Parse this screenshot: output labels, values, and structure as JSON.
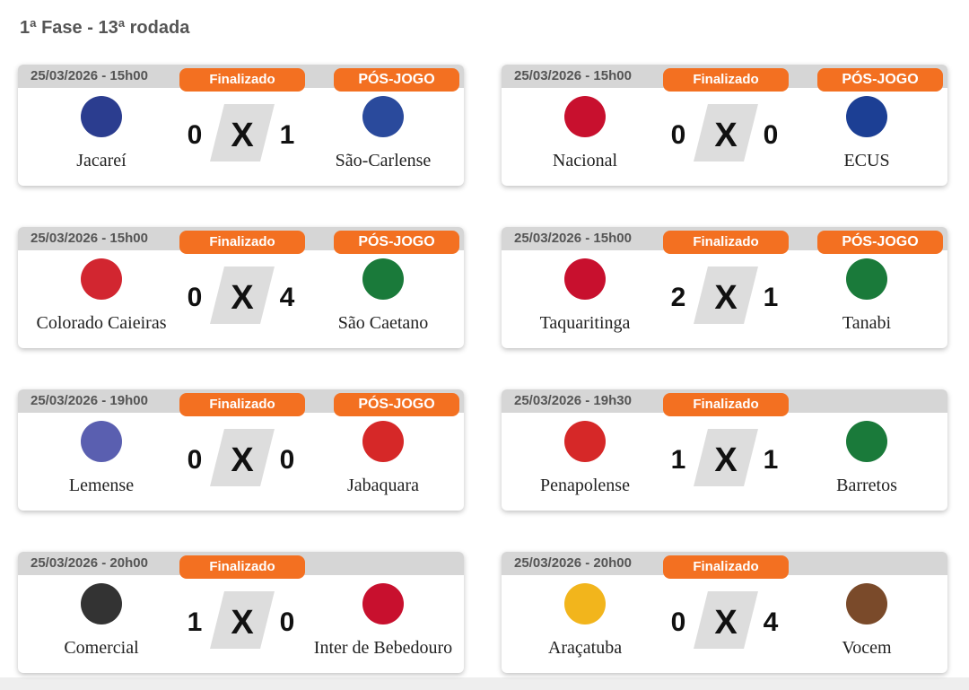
{
  "page_title": "1ª Fase - 13ª rodada",
  "versus": "X",
  "matches": [
    {
      "date": "25/03/2026 - 15h00",
      "status": "Finalizado",
      "post_game": "PÓS-JOGO",
      "home": "Jacareí",
      "home_score": 0,
      "away_score": 1,
      "away": "São-Carlense"
    },
    {
      "date": "25/03/2026 - 15h00",
      "status": "Finalizado",
      "post_game": "PÓS-JOGO",
      "home": "Nacional",
      "home_score": 0,
      "away_score": 0,
      "away": "ECUS"
    },
    {
      "date": "25/03/2026 - 15h00",
      "status": "Finalizado",
      "post_game": "PÓS-JOGO",
      "home": "Colorado Caieiras",
      "home_score": 0,
      "away_score": 4,
      "away": "São Caetano"
    },
    {
      "date": "25/03/2026 - 15h00",
      "status": "Finalizado",
      "post_game": "PÓS-JOGO",
      "home": "Taquaritinga",
      "home_score": 2,
      "away_score": 1,
      "away": "Tanabi"
    },
    {
      "date": "25/03/2026 - 19h00",
      "status": "Finalizado",
      "post_game": "PÓS-JOGO",
      "home": "Lemense",
      "home_score": 0,
      "away_score": 0,
      "away": "Jabaquara"
    },
    {
      "date": "25/03/2026 - 19h30",
      "status": "Finalizado",
      "home": "Penapolense",
      "home_score": 1,
      "away_score": 1,
      "away": "Barretos"
    },
    {
      "date": "25/03/2026 - 20h00",
      "status": "Finalizado",
      "home": "Comercial",
      "home_score": 1,
      "away_score": 0,
      "away": "Inter de Bebedouro"
    },
    {
      "date": "25/03/2026 - 20h00",
      "status": "Finalizado",
      "home": "Araçatuba",
      "home_score": 0,
      "away_score": 4,
      "away": "Vocem"
    }
  ]
}
